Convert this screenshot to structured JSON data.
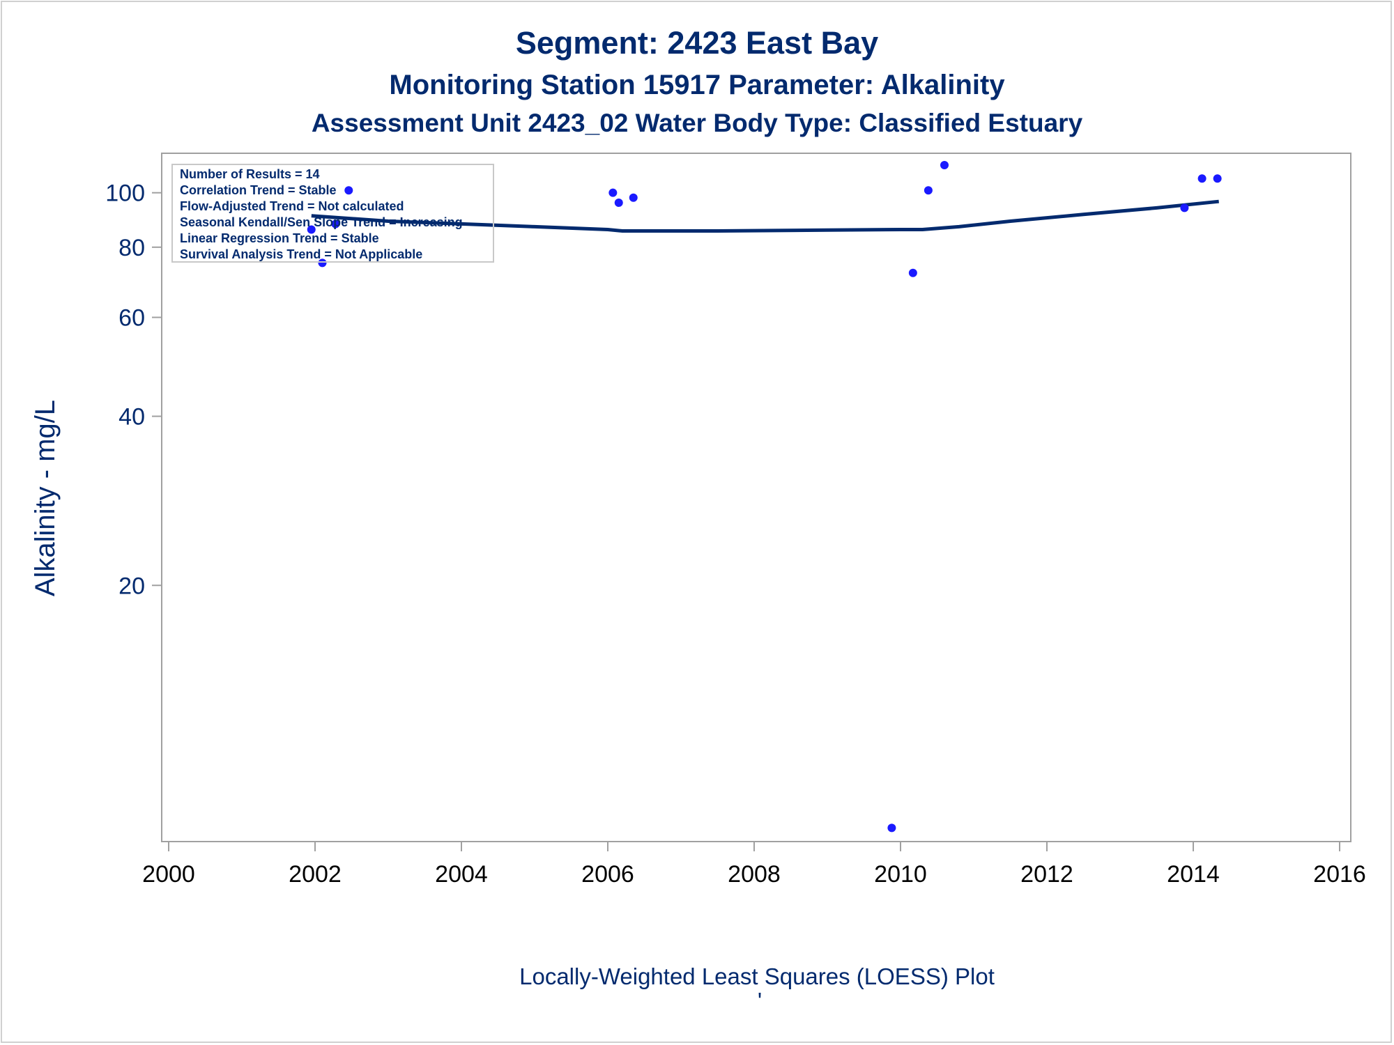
{
  "chart_data": {
    "type": "scatter",
    "title": "Segment: 2423  East Bay",
    "subtitle": "Monitoring Station 15917 Parameter: Alkalinity",
    "subtitle2": "Assessment Unit 2423_02   Water Body Type: Classified Estuary",
    "ylabel": "Alkalinity - mg/L",
    "xlabel": "Locally-Weighted Least Squares (LOESS) Plot",
    "footnote_mark": "'",
    "y_scale": "log",
    "xlim": [
      2000,
      2016
    ],
    "ylim": [
      7.2,
      112
    ],
    "x_ticks": [
      2000,
      2002,
      2004,
      2006,
      2008,
      2010,
      2012,
      2014,
      2016
    ],
    "y_ticks": [
      20,
      40,
      60,
      80,
      100
    ],
    "grid": false,
    "legend_placement": "top-left",
    "stats": [
      "Number of Results = 14",
      "Correlation Trend = Stable",
      "Flow-Adjusted Trend = Not calculated",
      "Seasonal Kendall/Sen Slope Trend = Increasing",
      "Linear Regression Trend = Stable",
      "Survival Analysis Trend = Not Applicable"
    ],
    "points": [
      {
        "x": 2001.95,
        "y": 86
      },
      {
        "x": 2002.1,
        "y": 75
      },
      {
        "x": 2002.28,
        "y": 88
      },
      {
        "x": 2002.46,
        "y": 101
      },
      {
        "x": 2006.07,
        "y": 100
      },
      {
        "x": 2006.15,
        "y": 96
      },
      {
        "x": 2006.35,
        "y": 98
      },
      {
        "x": 2009.88,
        "y": 7.4
      },
      {
        "x": 2010.17,
        "y": 72
      },
      {
        "x": 2010.38,
        "y": 101
      },
      {
        "x": 2010.6,
        "y": 112
      },
      {
        "x": 2013.88,
        "y": 94
      },
      {
        "x": 2014.12,
        "y": 106
      },
      {
        "x": 2014.33,
        "y": 106
      }
    ],
    "loess": [
      {
        "x": 2001.95,
        "y": 91
      },
      {
        "x": 2003.0,
        "y": 89
      },
      {
        "x": 2004.0,
        "y": 88
      },
      {
        "x": 2005.0,
        "y": 87
      },
      {
        "x": 2006.0,
        "y": 86
      },
      {
        "x": 2006.2,
        "y": 85.5
      },
      {
        "x": 2007.5,
        "y": 85.5
      },
      {
        "x": 2009.0,
        "y": 85.8
      },
      {
        "x": 2010.0,
        "y": 86
      },
      {
        "x": 2010.3,
        "y": 86
      },
      {
        "x": 2010.8,
        "y": 87
      },
      {
        "x": 2011.5,
        "y": 89
      },
      {
        "x": 2012.5,
        "y": 91.5
      },
      {
        "x": 2013.5,
        "y": 94
      },
      {
        "x": 2014.35,
        "y": 96.5
      }
    ],
    "colors": {
      "points": "#1a1aff",
      "line": "#032a6e",
      "text": "#032a6e",
      "axis": "#a0a0a0"
    }
  }
}
